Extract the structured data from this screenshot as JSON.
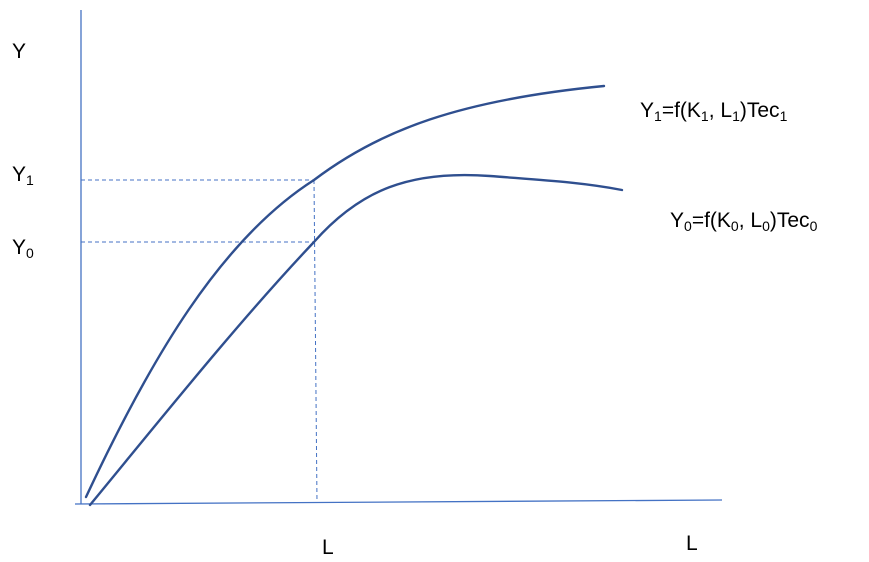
{
  "labels": {
    "y_axis": "Y",
    "y1_tick": {
      "base": "Y",
      "sub": "1"
    },
    "y0_tick": {
      "base": "Y",
      "sub": "0"
    },
    "l_tick": "L",
    "x_axis": "L"
  },
  "curves": {
    "upper": {
      "p1": "Y",
      "s1": "1",
      "p2": "=f(K",
      "s2": "1",
      "p3": ", L",
      "s3": "1",
      "p4": ")Tec",
      "s4": "1"
    },
    "lower": {
      "p1": "Y",
      "s1": "0",
      "p2": "=f(K",
      "s2": "0",
      "p3": ", L",
      "s3": "0",
      "p4": ")Tec",
      "s4": "0"
    }
  },
  "colors": {
    "axis": "#4472c4",
    "curve": "#2f4f8f",
    "text": "#000000"
  }
}
